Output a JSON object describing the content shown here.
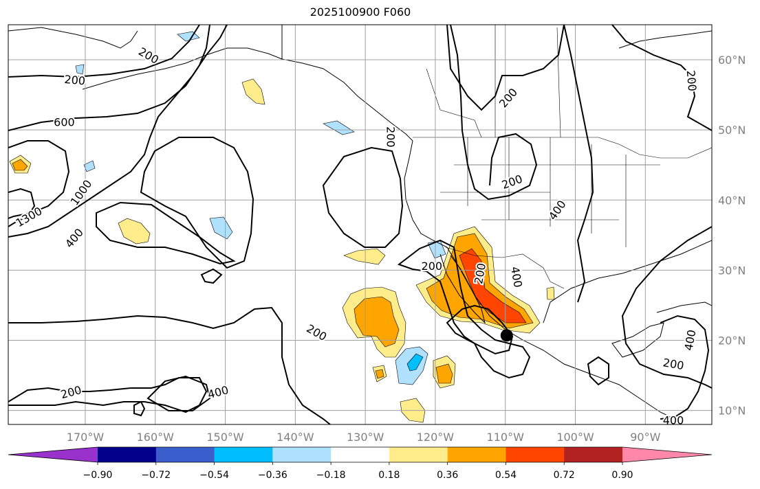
{
  "title": "2025100900 F060",
  "lon_ticks": [
    {
      "lon": -170,
      "label": "170°W"
    },
    {
      "lon": -160,
      "label": "160°W"
    },
    {
      "lon": -150,
      "label": "150°W"
    },
    {
      "lon": -140,
      "label": "140°W"
    },
    {
      "lon": -130,
      "label": "130°W"
    },
    {
      "lon": -120,
      "label": "120°W"
    },
    {
      "lon": -110,
      "label": "110°W"
    },
    {
      "lon": -100,
      "label": "100°W"
    },
    {
      "lon": -90,
      "label": "90°W"
    }
  ],
  "lat_ticks": [
    {
      "lat": 60,
      "label": "60°N"
    },
    {
      "lat": 50,
      "label": "50°N"
    },
    {
      "lat": 40,
      "label": "40°N"
    },
    {
      "lat": 30,
      "label": "30°N"
    },
    {
      "lat": 20,
      "label": "20°N"
    },
    {
      "lat": 10,
      "label": "10°N"
    }
  ],
  "colorbar": {
    "colors": [
      "#9932cc",
      "#00008b",
      "#3a5fcd",
      "#00bfff",
      "#b0e2ff",
      "#ffffff",
      "#ffec8b",
      "#ffa500",
      "#ff4500",
      "#b22222",
      "#ff88aa"
    ],
    "tick_labels": [
      "−0.90",
      "−0.72",
      "−0.54",
      "−0.36",
      "−0.18",
      "0.18",
      "0.36",
      "0.54",
      "0.72",
      "0.90"
    ]
  },
  "contour_labels": [
    {
      "text": "200",
      "lon": -161,
      "lat": 60.5,
      "rot": 30
    },
    {
      "text": "200",
      "lon": -171.5,
      "lat": 57,
      "rot": 5
    },
    {
      "text": "600",
      "lon": -173,
      "lat": 51,
      "rot": 0
    },
    {
      "text": "1000",
      "lon": -170.5,
      "lat": 41,
      "rot": -55
    },
    {
      "text": "1300",
      "lon": -178,
      "lat": 37.5,
      "rot": -30
    },
    {
      "text": "400",
      "lon": -171.5,
      "lat": 34.5,
      "rot": -50
    },
    {
      "text": "200",
      "lon": -126.5,
      "lat": 49,
      "rot": 90
    },
    {
      "text": "200",
      "lon": -120.5,
      "lat": 30.5,
      "rot": 0
    },
    {
      "text": "200",
      "lon": -113.5,
      "lat": 29.5,
      "rot": -80
    },
    {
      "text": "400",
      "lon": -108.5,
      "lat": 29,
      "rot": 80
    },
    {
      "text": "200",
      "lon": -109,
      "lat": 42.5,
      "rot": -20
    },
    {
      "text": "200",
      "lon": -109.5,
      "lat": 54.5,
      "rot": -50
    },
    {
      "text": "400",
      "lon": -102.5,
      "lat": 38.5,
      "rot": -55
    },
    {
      "text": "200",
      "lon": -83.5,
      "lat": 57,
      "rot": 85
    },
    {
      "text": "200",
      "lon": -137,
      "lat": 21,
      "rot": 30
    },
    {
      "text": "200",
      "lon": -172,
      "lat": 12.5,
      "rot": -15
    },
    {
      "text": "400",
      "lon": -151,
      "lat": 12.5,
      "rot": -15
    },
    {
      "text": "400",
      "lon": -83.5,
      "lat": 20,
      "rot": -80
    },
    {
      "text": "200",
      "lon": -86,
      "lat": 16.5,
      "rot": 10
    },
    {
      "text": "400",
      "lon": -86,
      "lat": 8.5,
      "rot": 0
    }
  ],
  "markers": [
    {
      "name": "storm-center",
      "lon": -109.8,
      "lat": 20.7
    }
  ]
}
